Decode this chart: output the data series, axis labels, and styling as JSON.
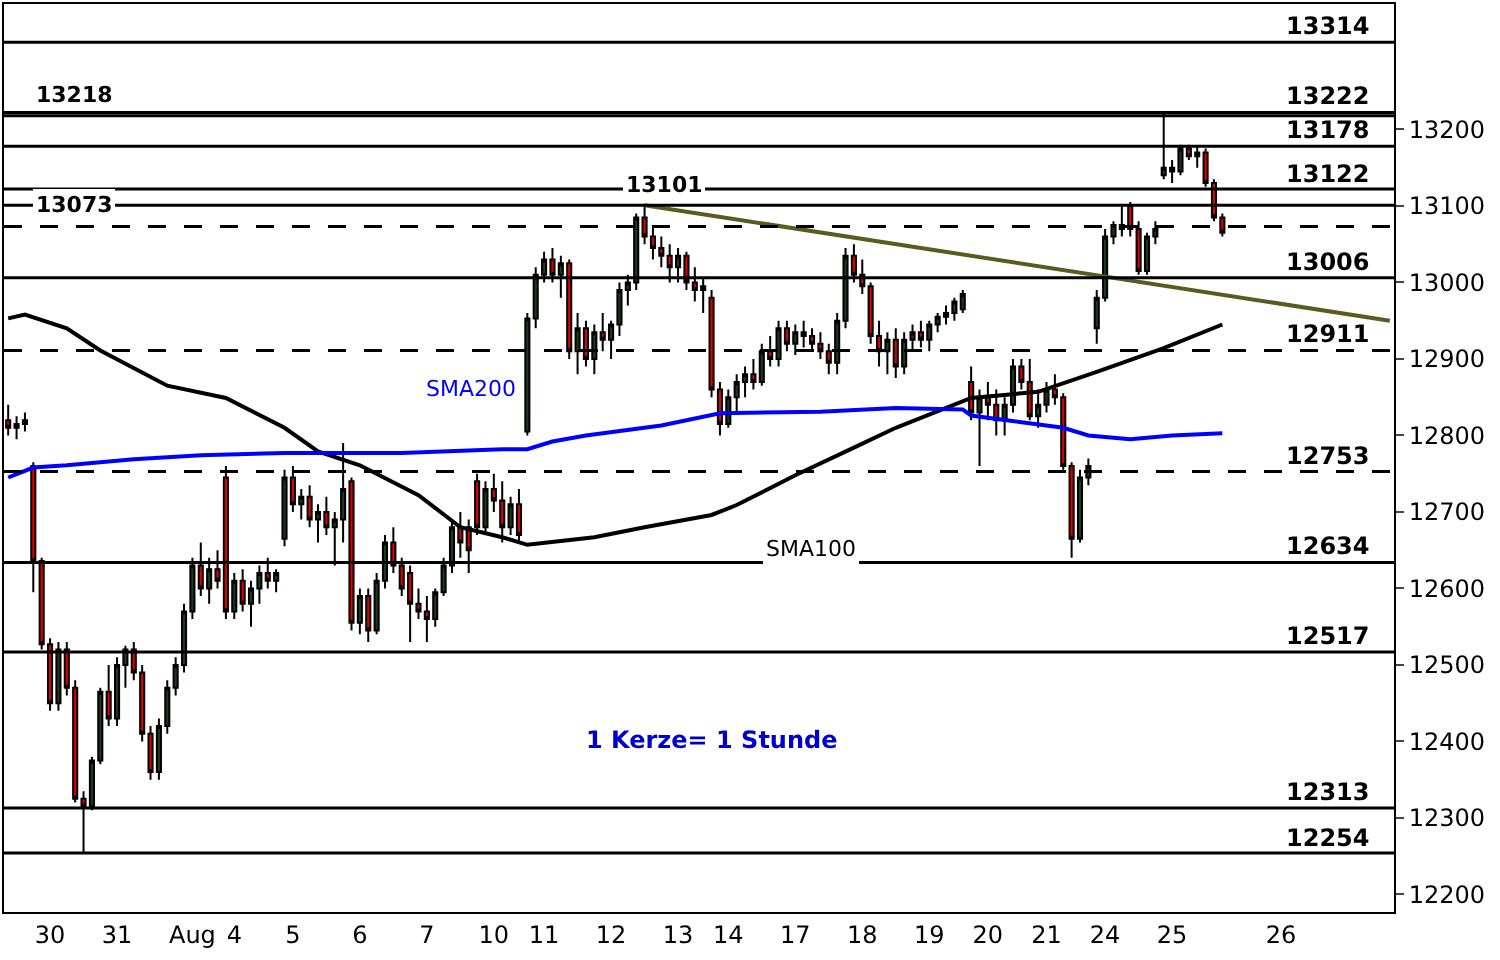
{
  "chart_data": {
    "type": "candlestick",
    "categories": [
      null,
      null,
      null,
      null,
      null,
      "30",
      null,
      null,
      null,
      null,
      null,
      null,
      null,
      "31",
      null,
      null,
      null,
      null,
      null,
      null,
      null,
      null,
      "Aug",
      null,
      null,
      null,
      null,
      "4",
      null,
      null,
      null,
      null,
      null,
      null,
      "5",
      null,
      null,
      null,
      null,
      null,
      null,
      null,
      "6",
      null,
      null,
      null,
      null,
      null,
      null,
      null,
      "7",
      null,
      null,
      null,
      null,
      null,
      null,
      null,
      "10",
      null,
      null,
      null,
      null,
      null,
      "11",
      null,
      null,
      null,
      null,
      null,
      null,
      null,
      "12",
      null,
      null,
      null,
      null,
      null,
      null,
      null,
      "13",
      null,
      null,
      null,
      null,
      null,
      "14",
      null,
      null,
      null,
      null,
      null,
      null,
      null,
      "17",
      null,
      null,
      null,
      null,
      null,
      null,
      null,
      "18",
      null,
      null,
      null,
      null,
      null,
      null,
      null,
      "19",
      null,
      null,
      null,
      null,
      null,
      null,
      "20",
      null,
      null,
      null,
      null,
      null,
      null,
      "21",
      null,
      null,
      null,
      null,
      null,
      null,
      "24",
      null,
      null,
      null,
      null,
      null,
      null,
      null,
      "25",
      null,
      null,
      null,
      null,
      null,
      null,
      null,
      null,
      null,
      null,
      null,
      null,
      "26",
      null,
      null,
      null,
      null,
      null,
      null,
      null,
      null,
      null,
      null,
      null,
      null,
      null
    ],
    "ohlc": [
      [
        12820,
        12840,
        12800,
        12810
      ],
      [
        12810,
        12825,
        12795,
        12815
      ],
      [
        12815,
        12830,
        12805,
        12820
      ],
      [
        12760,
        12765,
        12595,
        12636
      ],
      [
        12636,
        12640,
        12520,
        12527
      ],
      [
        12527,
        12535,
        12440,
        12450
      ],
      [
        12450,
        12530,
        12440,
        12520
      ],
      [
        12520,
        12530,
        12460,
        12470
      ],
      [
        12470,
        12480,
        12320,
        12325
      ],
      [
        12325,
        12335,
        12254,
        12315
      ],
      [
        12315,
        12380,
        12310,
        12375
      ],
      [
        12375,
        12470,
        12370,
        12465
      ],
      [
        12465,
        12500,
        12420,
        12430
      ],
      [
        12430,
        12510,
        12420,
        12500
      ],
      [
        12500,
        12525,
        12470,
        12520
      ],
      [
        12520,
        12530,
        12480,
        12490
      ],
      [
        12490,
        12500,
        12400,
        12410
      ],
      [
        12410,
        12420,
        12350,
        12360
      ],
      [
        12360,
        12430,
        12350,
        12420
      ],
      [
        12420,
        12480,
        12410,
        12470
      ],
      [
        12470,
        12510,
        12460,
        12500
      ],
      [
        12500,
        12580,
        12490,
        12570
      ],
      [
        12570,
        12640,
        12560,
        12630
      ],
      [
        12630,
        12660,
        12590,
        12600
      ],
      [
        12600,
        12640,
        12580,
        12625
      ],
      [
        12625,
        12650,
        12600,
        12610
      ],
      [
        12745,
        12760,
        12560,
        12570
      ],
      [
        12570,
        12620,
        12560,
        12610
      ],
      [
        12610,
        12625,
        12570,
        12580
      ],
      [
        12580,
        12610,
        12550,
        12600
      ],
      [
        12600,
        12630,
        12580,
        12620
      ],
      [
        12620,
        12640,
        12600,
        12610
      ],
      [
        12610,
        12625,
        12595,
        12620
      ],
      [
        12665,
        12755,
        12655,
        12745
      ],
      [
        12745,
        12760,
        12700,
        12710
      ],
      [
        12710,
        12730,
        12690,
        12720
      ],
      [
        12720,
        12735,
        12680,
        12690
      ],
      [
        12690,
        12710,
        12660,
        12700
      ],
      [
        12700,
        12720,
        12670,
        12680
      ],
      [
        12680,
        12700,
        12630,
        12690
      ],
      [
        12690,
        12790,
        12660,
        12730
      ],
      [
        12740,
        12745,
        12545,
        12555
      ],
      [
        12555,
        12600,
        12540,
        12590
      ],
      [
        12590,
        12600,
        12530,
        12545
      ],
      [
        12545,
        12620,
        12540,
        12610
      ],
      [
        12610,
        12670,
        12600,
        12660
      ],
      [
        12660,
        12680,
        12620,
        12630
      ],
      [
        12630,
        12640,
        12590,
        12600
      ],
      [
        12620,
        12630,
        12530,
        12580
      ],
      [
        12580,
        12600,
        12560,
        12570
      ],
      [
        12570,
        12590,
        12530,
        12560
      ],
      [
        12560,
        12600,
        12550,
        12595
      ],
      [
        12595,
        12640,
        12590,
        12630
      ],
      [
        12630,
        12690,
        12620,
        12680
      ],
      [
        12680,
        12700,
        12640,
        12660
      ],
      [
        12680,
        12690,
        12620,
        12650
      ],
      [
        12740,
        12750,
        12670,
        12680
      ],
      [
        12680,
        12740,
        12670,
        12730
      ],
      [
        12730,
        12750,
        12700,
        12715
      ],
      [
        12715,
        12740,
        12660,
        12680
      ],
      [
        12680,
        12720,
        12670,
        12710
      ],
      [
        12710,
        12730,
        12660,
        12670
      ],
      [
        12805,
        12960,
        12800,
        12953
      ],
      [
        12953,
        13020,
        12940,
        13010
      ],
      [
        13010,
        13040,
        13000,
        13030
      ],
      [
        13030,
        13045,
        13000,
        13010
      ],
      [
        13010,
        13035,
        12980,
        13025
      ],
      [
        13025,
        13030,
        12900,
        12910
      ],
      [
        12910,
        12960,
        12880,
        12940
      ],
      [
        12940,
        12950,
        12890,
        12900
      ],
      [
        12900,
        12945,
        12880,
        12935
      ],
      [
        12935,
        12960,
        12910,
        12925
      ],
      [
        12925,
        12950,
        12900,
        12945
      ],
      [
        12945,
        13000,
        12930,
        12990
      ],
      [
        12990,
        13010,
        12970,
        13000
      ],
      [
        13000,
        13090,
        12990,
        13085
      ],
      [
        13085,
        13101,
        13050,
        13060
      ],
      [
        13060,
        13075,
        13030,
        13045
      ],
      [
        13045,
        13060,
        13020,
        13035
      ],
      [
        13035,
        13050,
        13000,
        13020
      ],
      [
        13020,
        13045,
        13000,
        13035
      ],
      [
        13035,
        13040,
        12990,
        13000
      ],
      [
        13000,
        13020,
        12975,
        12990
      ],
      [
        12990,
        13005,
        12960,
        12995
      ],
      [
        12980,
        12990,
        12850,
        12860
      ],
      [
        12860,
        12870,
        12800,
        12815
      ],
      [
        12815,
        12860,
        12810,
        12850
      ],
      [
        12850,
        12880,
        12830,
        12870
      ],
      [
        12870,
        12890,
        12850,
        12880
      ],
      [
        12880,
        12900,
        12860,
        12870
      ],
      [
        12870,
        12920,
        12865,
        12910
      ],
      [
        12910,
        12930,
        12890,
        12900
      ],
      [
        12900,
        12950,
        12890,
        12940
      ],
      [
        12940,
        12950,
        12910,
        12920
      ],
      [
        12920,
        12945,
        12905,
        12935
      ],
      [
        12935,
        12950,
        12915,
        12930
      ],
      [
        12930,
        12940,
        12910,
        12920
      ],
      [
        12920,
        12935,
        12900,
        12910
      ],
      [
        12910,
        12920,
        12880,
        12895
      ],
      [
        12895,
        12960,
        12880,
        12950
      ],
      [
        12950,
        13045,
        12940,
        13035
      ],
      [
        13035,
        13050,
        13000,
        13010
      ],
      [
        13010,
        13030,
        12985,
        12995
      ],
      [
        12995,
        13000,
        12920,
        12930
      ],
      [
        12930,
        12950,
        12890,
        12910
      ],
      [
        12910,
        12935,
        12880,
        12925
      ],
      [
        12925,
        12940,
        12875,
        12890
      ],
      [
        12890,
        12935,
        12880,
        12925
      ],
      [
        12925,
        12945,
        12910,
        12935
      ],
      [
        12935,
        12950,
        12915,
        12925
      ],
      [
        12925,
        12950,
        12910,
        12945
      ],
      [
        12945,
        12960,
        12935,
        12955
      ],
      [
        12955,
        12970,
        12945,
        12960
      ],
      [
        12960,
        12980,
        12950,
        12975
      ],
      [
        12965,
        12990,
        12960,
        12985
      ],
      [
        12870,
        12890,
        12820,
        12830
      ],
      [
        12830,
        12860,
        12760,
        12850
      ],
      [
        12850,
        12870,
        12820,
        12840
      ],
      [
        12840,
        12860,
        12800,
        12820
      ],
      [
        12820,
        12850,
        12800,
        12840
      ],
      [
        12840,
        12900,
        12830,
        12890
      ],
      [
        12890,
        12900,
        12860,
        12870
      ],
      [
        12870,
        12900,
        12820,
        12825
      ],
      [
        12825,
        12860,
        12810,
        12840
      ],
      [
        12840,
        12870,
        12830,
        12860
      ],
      [
        12860,
        12880,
        12840,
        12850
      ],
      [
        12850,
        12855,
        12755,
        12760
      ],
      [
        12760,
        12765,
        12640,
        12665
      ],
      [
        12665,
        12755,
        12660,
        12745
      ],
      [
        12745,
        12770,
        12735,
        12760
      ],
      [
        12940,
        12990,
        12920,
        12980
      ],
      [
        12980,
        13070,
        12975,
        13060
      ],
      [
        13060,
        13080,
        13050,
        13075
      ],
      [
        13075,
        13100,
        13060,
        13070
      ],
      [
        13100,
        13105,
        13060,
        13070
      ],
      [
        13070,
        13080,
        13010,
        13015
      ],
      [
        13015,
        13065,
        13010,
        13060
      ],
      [
        13060,
        13080,
        13050,
        13070
      ],
      [
        13140,
        13222,
        13135,
        13150
      ],
      [
        13150,
        13160,
        13130,
        13145
      ],
      [
        13145,
        13180,
        13140,
        13175
      ],
      [
        13175,
        13180,
        13160,
        13165
      ],
      [
        13165,
        13178,
        13150,
        13170
      ],
      [
        13170,
        13175,
        13125,
        13130
      ],
      [
        13130,
        13135,
        13080,
        13085
      ],
      [
        13085,
        13090,
        13060,
        13065
      ],
      null,
      null,
      null,
      null,
      null,
      null,
      null,
      null,
      null,
      null,
      null,
      null,
      null,
      null,
      null,
      null,
      null,
      null,
      null,
      null
    ],
    "series": [
      {
        "type": "line",
        "color": "#000000",
        "values": [
          12953,
          null,
          12958,
          null,
          null,
          null,
          null,
          12940,
          null,
          null,
          null,
          12911,
          null,
          null,
          null,
          null,
          null,
          null,
          null,
          12865,
          null,
          null,
          null,
          null,
          null,
          null,
          12849,
          null,
          null,
          null,
          null,
          null,
          null,
          12810,
          null,
          null,
          null,
          12779,
          null,
          null,
          null,
          null,
          12761,
          null,
          null,
          null,
          null,
          null,
          null,
          12722,
          null,
          null,
          null,
          null,
          12680,
          null,
          null,
          null,
          null,
          12667,
          null,
          null,
          12657,
          null,
          null,
          null,
          null,
          null,
          null,
          null,
          12667,
          null,
          null,
          null,
          null,
          null,
          12680,
          null,
          null,
          null,
          null,
          null,
          null,
          null,
          12696,
          null,
          null,
          12709,
          null,
          null,
          null,
          null,
          null,
          null,
          12748,
          null,
          null,
          null,
          null,
          null,
          null,
          12784,
          null,
          null,
          null,
          null,
          12810,
          null,
          null,
          null,
          null,
          null,
          null,
          null,
          null,
          12849,
          null,
          null,
          null,
          null,
          null,
          null,
          null,
          12857,
          null,
          null,
          null,
          null,
          null,
          null,
          12883,
          null,
          null,
          null,
          null,
          null,
          null,
          null,
          12914,
          null,
          null,
          null,
          null,
          null,
          null,
          12945,
          null,
          null,
          null,
          null,
          null,
          null,
          null,
          null,
          null,
          null,
          null,
          null,
          null,
          null,
          null,
          null,
          null,
          null,
          null,
          null
        ]
      },
      {
        "type": "line",
        "color": "#0000ff",
        "values": [
          12745,
          null,
          null,
          12758,
          null,
          null,
          null,
          12761,
          null,
          null,
          null,
          null,
          null,
          null,
          null,
          12769,
          null,
          null,
          null,
          null,
          null,
          null,
          null,
          12774,
          null,
          null,
          null,
          null,
          null,
          null,
          null,
          null,
          null,
          12777,
          null,
          null,
          null,
          null,
          null,
          null,
          null,
          null,
          null,
          null,
          null,
          null,
          null,
          12777,
          null,
          null,
          null,
          null,
          null,
          null,
          null,
          null,
          null,
          null,
          null,
          12782,
          null,
          null,
          12782,
          null,
          null,
          12792,
          null,
          null,
          null,
          12800,
          null,
          null,
          null,
          null,
          null,
          null,
          null,
          null,
          12813,
          null,
          null,
          null,
          null,
          null,
          null,
          12829,
          null,
          null,
          null,
          null,
          null,
          null,
          null,
          null,
          null,
          null,
          null,
          12831,
          null,
          null,
          null,
          null,
          null,
          null,
          null,
          null,
          12836,
          null,
          null,
          null,
          null,
          null,
          null,
          null,
          12834,
          12826,
          null,
          null,
          null,
          null,
          null,
          null,
          null,
          null,
          null,
          null,
          12810,
          null,
          null,
          12800,
          null,
          null,
          null,
          null,
          12795,
          null,
          null,
          null,
          null,
          12800,
          null,
          null,
          null,
          null,
          null,
          12803,
          null,
          null,
          null,
          null,
          null,
          null,
          null,
          null,
          null,
          null,
          null,
          null,
          null,
          null,
          null,
          null,
          null,
          null,
          null,
          null
        ]
      },
      {
        "type": "line",
        "color": "#5b5b1f",
        "values": [
          null,
          null,
          null,
          null,
          null,
          null,
          null,
          null,
          null,
          null,
          null,
          null,
          null,
          null,
          null,
          null,
          null,
          null,
          null,
          null,
          null,
          null,
          null,
          null,
          null,
          null,
          null,
          null,
          null,
          null,
          null,
          null,
          null,
          null,
          null,
          null,
          null,
          null,
          null,
          null,
          null,
          null,
          null,
          null,
          null,
          null,
          null,
          null,
          null,
          null,
          null,
          null,
          null,
          null,
          null,
          null,
          null,
          null,
          null,
          null,
          null,
          null,
          null,
          null,
          null,
          null,
          null,
          null,
          null,
          null,
          null,
          null,
          null,
          null,
          null,
          null,
          13101,
          null,
          null,
          null,
          null,
          null,
          null,
          null,
          null,
          null,
          null,
          null,
          null,
          null,
          null,
          null,
          null,
          null,
          null,
          null,
          null,
          null,
          null,
          null,
          null,
          null,
          null,
          null,
          null,
          null,
          null,
          null,
          null,
          null,
          null,
          null,
          null,
          null,
          null,
          null,
          null,
          null,
          null,
          null,
          null,
          null,
          null,
          null,
          null,
          null,
          null,
          null,
          null,
          null,
          null,
          null,
          null,
          null,
          null,
          null,
          null,
          null,
          null,
          null,
          null,
          null,
          null,
          null,
          null,
          null,
          null,
          null,
          null,
          null,
          null,
          null,
          null,
          null,
          null,
          null,
          null,
          null,
          null,
          null,
          null,
          null,
          null,
          null,
          null,
          12950
        ]
      }
    ],
    "ylim": [
      12177,
      13364
    ],
    "yticks": [
      12200,
      12300,
      12400,
      12500,
      12600,
      12700,
      12800,
      12900,
      13000,
      13100,
      13200
    ],
    "ref_lines": [
      {
        "axis": "y",
        "value": 13314,
        "label": "13314"
      },
      {
        "axis": "y",
        "value": 13222,
        "label": "13222"
      },
      {
        "axis": "y",
        "value": 13218,
        "label": null
      },
      {
        "axis": "y",
        "value": 13178,
        "label": "13178"
      },
      {
        "axis": "y",
        "value": 13122,
        "label": "13122"
      },
      {
        "axis": "y",
        "value": 13101,
        "label": null
      },
      {
        "axis": "y",
        "value": 13073,
        "label": null,
        "line_style": "dashed"
      },
      {
        "axis": "y",
        "value": 13006,
        "label": "13006"
      },
      {
        "axis": "y",
        "value": 12911,
        "label": "12911",
        "line_style": "dashed"
      },
      {
        "axis": "y",
        "value": 12753,
        "label": "12753",
        "line_style": "dashed"
      },
      {
        "axis": "y",
        "value": 12634,
        "label": "12634"
      },
      {
        "axis": "y",
        "value": 12517,
        "label": "12517"
      },
      {
        "axis": "y",
        "value": 12313,
        "label": "12313"
      },
      {
        "axis": "y",
        "value": 12254,
        "label": "12254"
      }
    ],
    "annotations": [
      {
        "text": "13218",
        "y": 13218
      },
      {
        "text": "13073",
        "y": 13073
      },
      {
        "text": "13101",
        "y": 13101
      },
      "SMA200",
      "SMA100",
      "1 Kerze= 1 Stunde"
    ]
  }
}
